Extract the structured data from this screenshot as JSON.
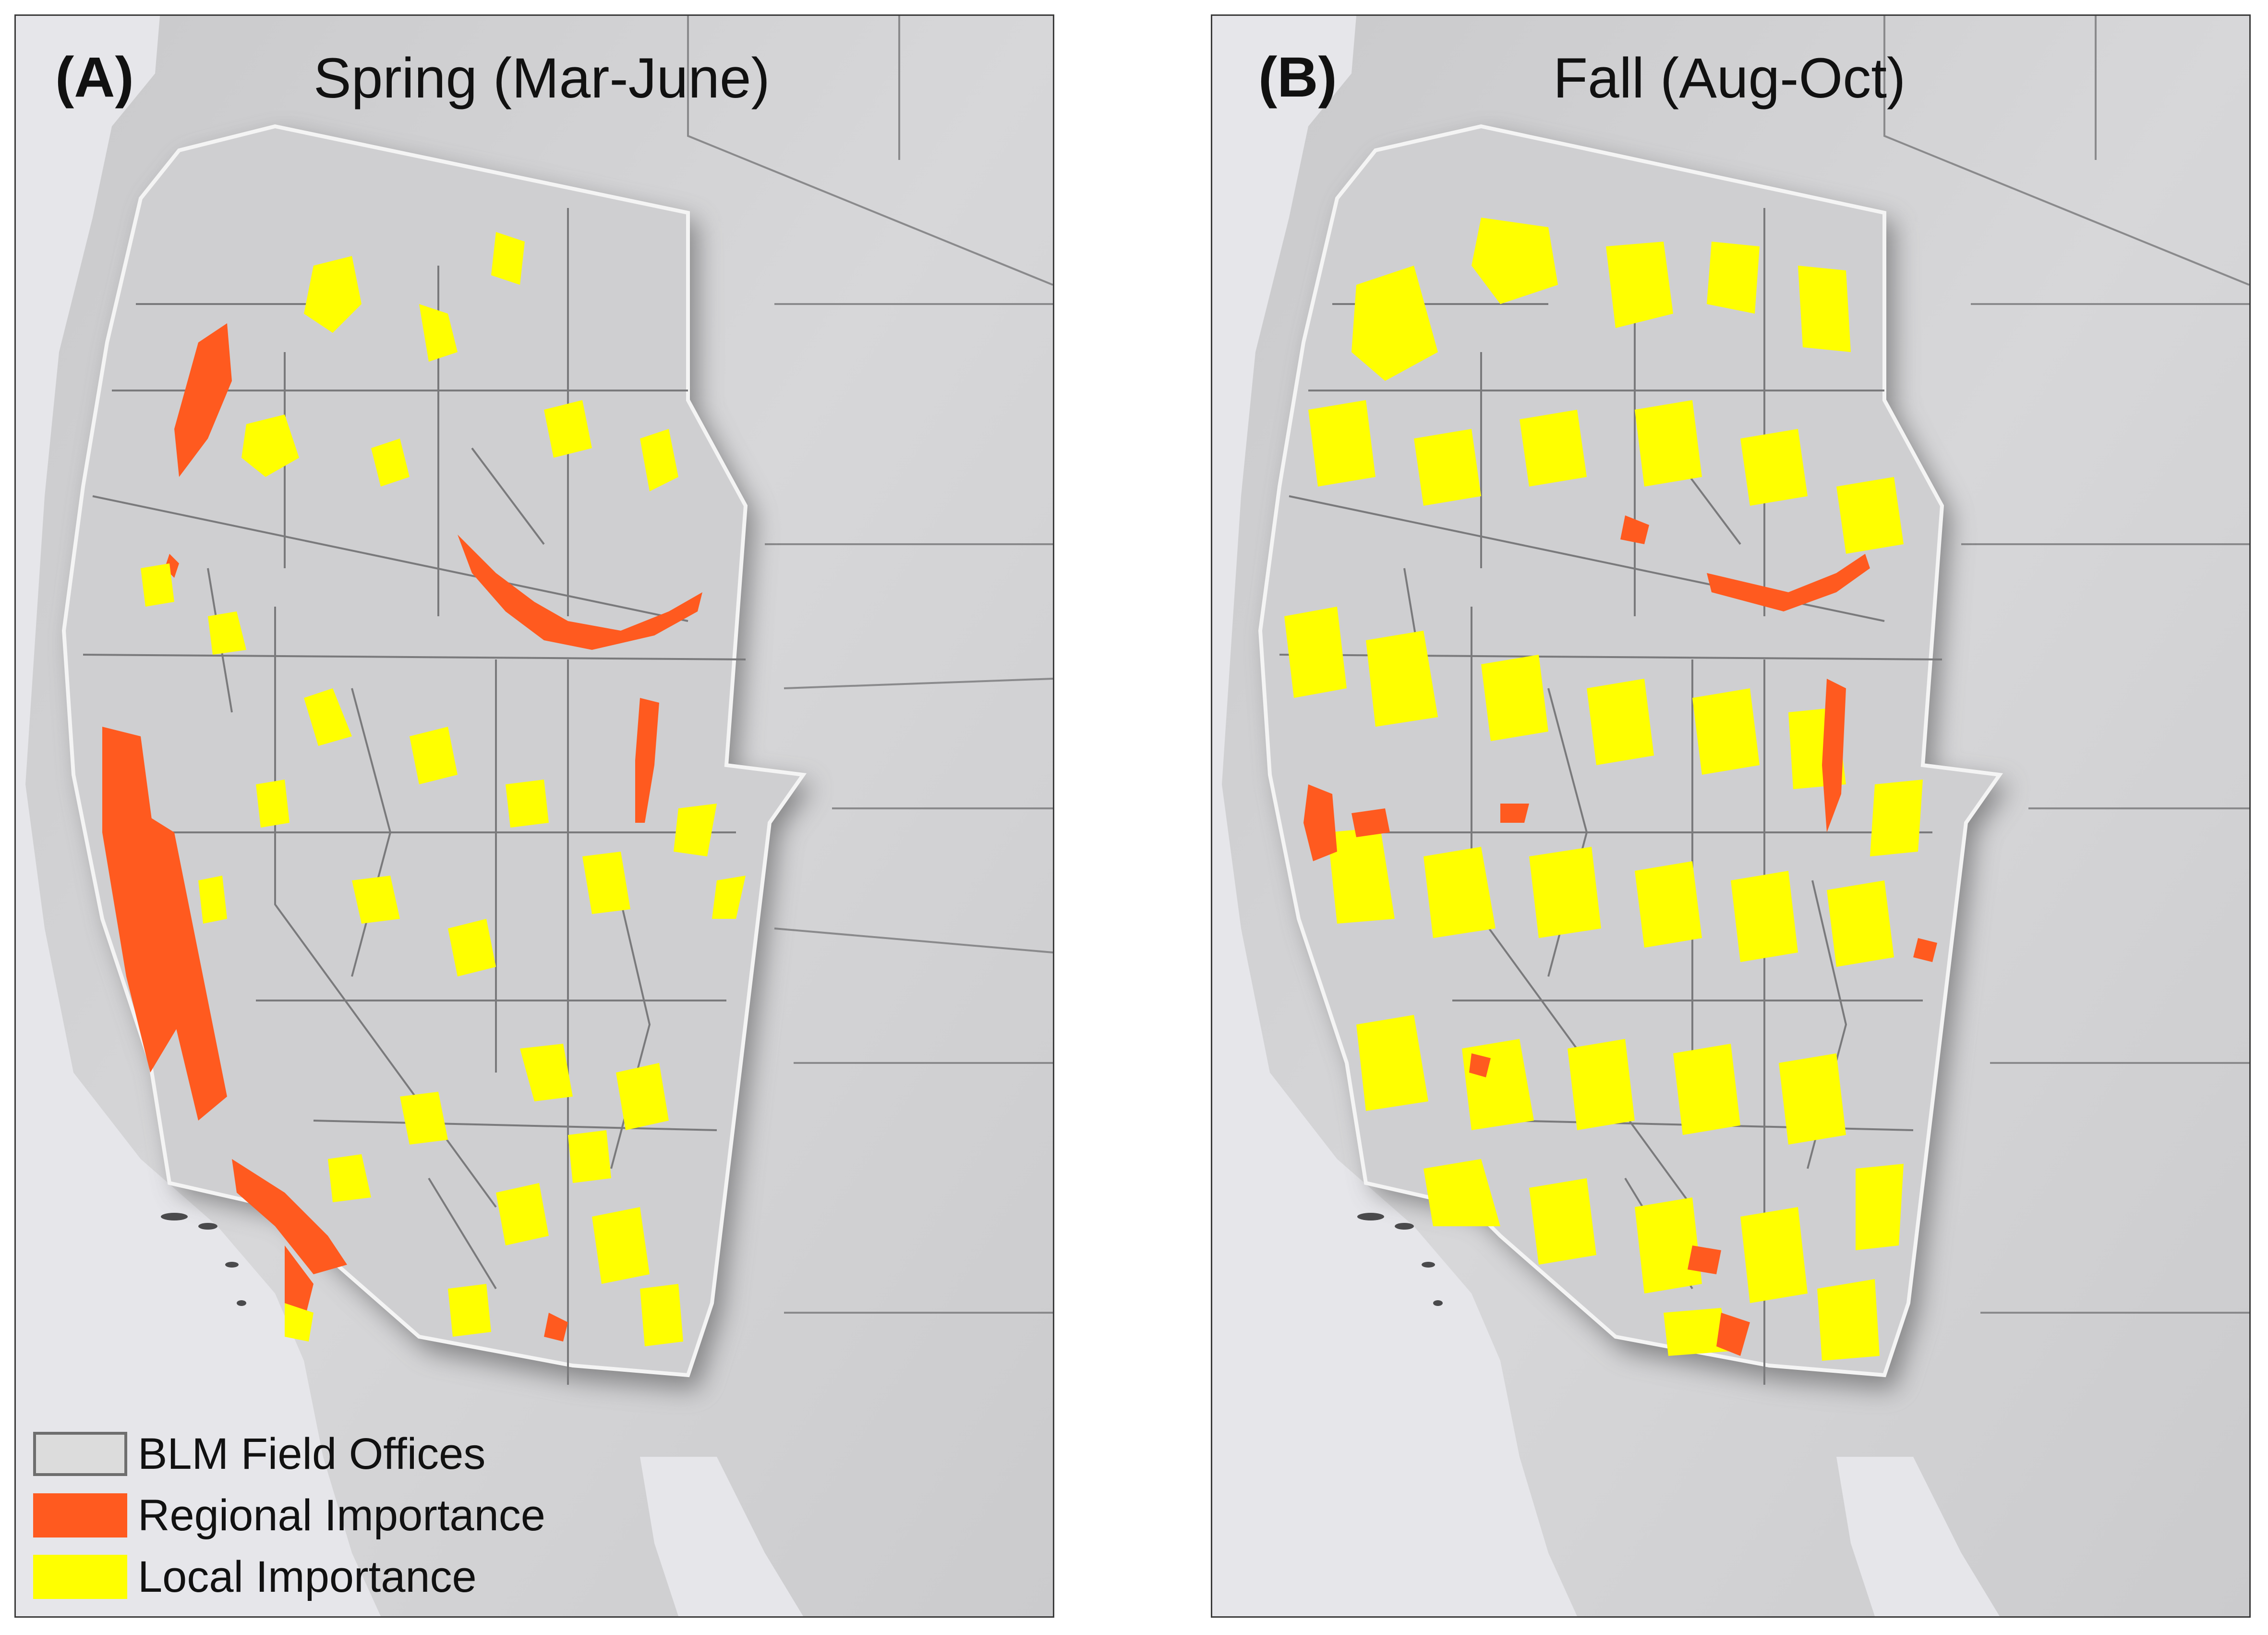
{
  "panels": [
    {
      "letter": "(A)",
      "title": "Spring (Mar-June)"
    },
    {
      "letter": "(B)",
      "title": "Fall (Aug-Oct)"
    }
  ],
  "legend": {
    "items": [
      {
        "label": "BLM Field Offices",
        "symbol": "outline",
        "color": "#6e6e6e"
      },
      {
        "label": "Regional Importance",
        "symbol": "fill",
        "color": "#ff5a1f"
      },
      {
        "label": "Local Importance",
        "symbol": "fill",
        "color": "#ffff00"
      }
    ]
  },
  "colors": {
    "regional": "#ff5a1f",
    "local": "#ffff00",
    "land": "#d2d2d4",
    "study_area": "#cfcfd1",
    "ocean": "#e6e6ea",
    "boundary": "#6e6e6e"
  }
}
